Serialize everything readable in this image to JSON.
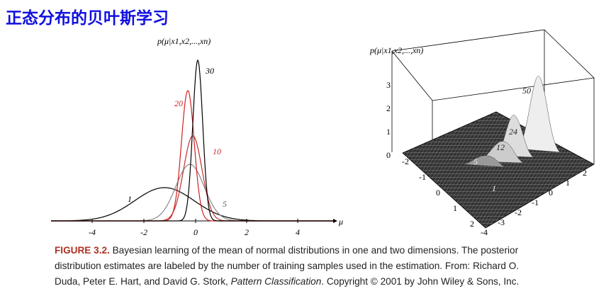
{
  "title": "正态分布的贝叶斯学习",
  "figure_left": {
    "y_label": "p(μ|x1,x2,...,xn)",
    "x_label": "μ",
    "x_ticks": [
      "-4",
      "-2",
      "0",
      "2",
      "4"
    ],
    "curve_labels": [
      "1",
      "5",
      "10",
      "20",
      "30"
    ]
  },
  "figure_right": {
    "z_label": "p(μ|x1,x2,...,xn)",
    "z_ticks": [
      "3",
      "2",
      "1",
      "0"
    ],
    "x_ticks": [
      "-2",
      "-1",
      "0",
      "1",
      "2"
    ],
    "y_ticks": [
      "-4",
      "-3",
      "-2",
      "-1",
      "0",
      "1",
      "2"
    ],
    "peak_labels": [
      "50",
      "24",
      "12",
      "5",
      "1"
    ]
  },
  "caption": {
    "label": "FIGURE 3.2.",
    "line1": " Bayesian learning of the mean of normal distributions in one and two dimensions. The posterior",
    "line2": "distribution estimates are labeled by the number of training samples used in the estimation. From: Richard O.",
    "line3_a": "Duda, Peter E. Hart, and David G. Stork, ",
    "line3_italic": "Pattern Classification",
    "line3_b": ". Copyright © 2001 by John Wiley & Sons, Inc."
  }
}
